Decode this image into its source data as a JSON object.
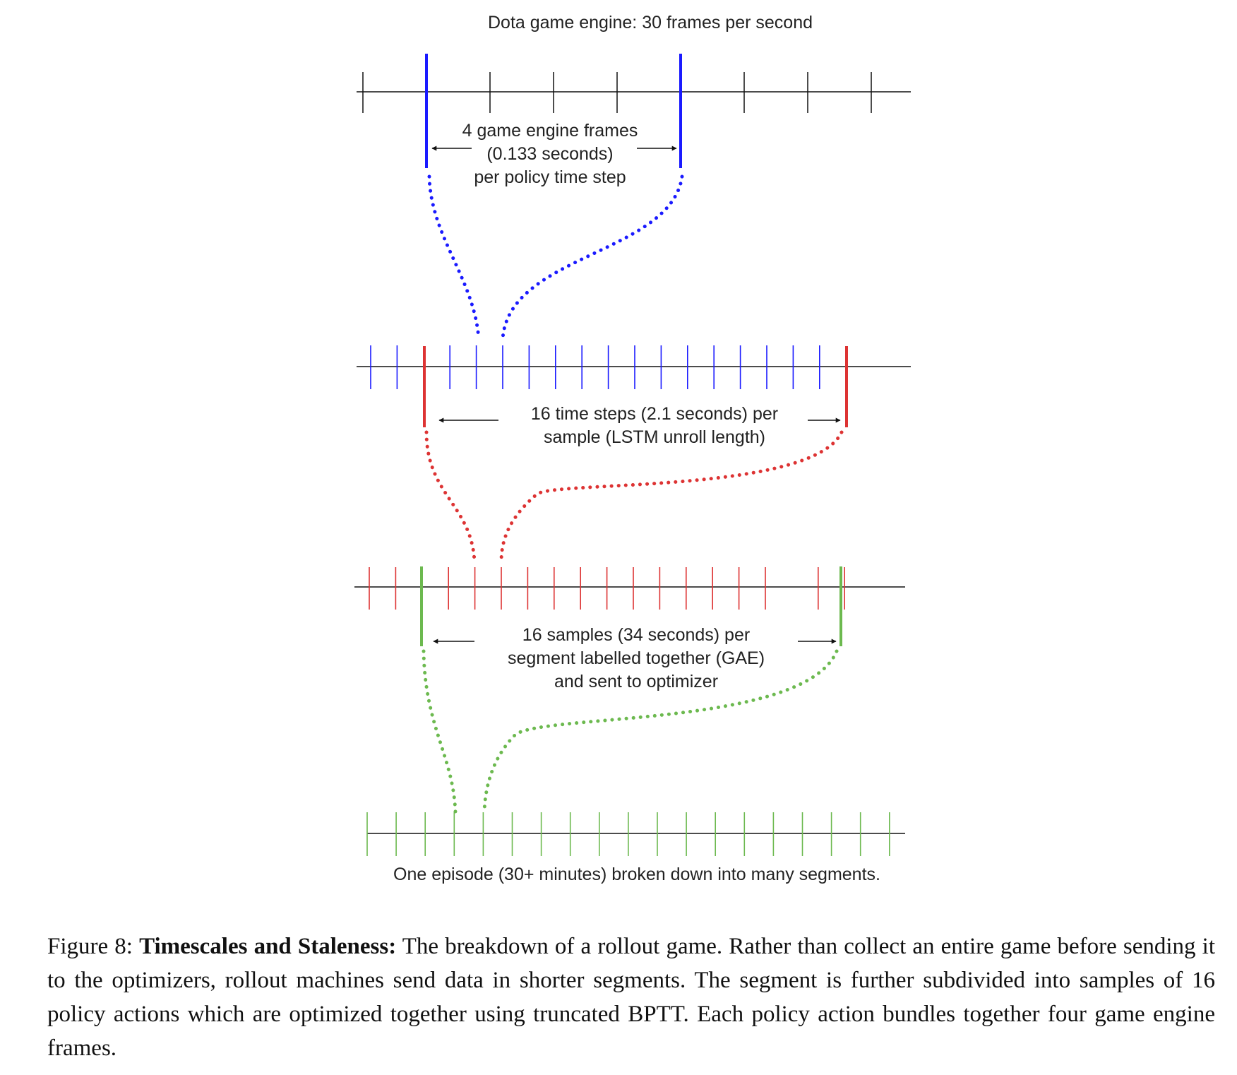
{
  "diagram": {
    "top_title": "Dota game engine: 30 frames per second",
    "annotations": {
      "frames": [
        "4 game engine frames",
        "(0.133 seconds)",
        "per policy time step"
      ],
      "steps": [
        "16 time steps (2.1 seconds) per",
        "sample (LSTM unroll length)"
      ],
      "samples": [
        "16 samples (34 seconds) per",
        "segment labelled together (GAE)",
        "and sent to optimizer"
      ],
      "episode": "One episode (30+ minutes) broken down into many segments."
    },
    "colors": {
      "axis": "#111111",
      "frame_tick": "#111111",
      "policy_step": "#1a1aff",
      "sample": "#dd3333",
      "segment": "#6cb94f"
    }
  },
  "caption": {
    "prefix": "Figure 8: ",
    "title": "Timescales and Staleness:",
    "body": " The breakdown of a rollout game. Rather than collect an entire game before sending it to the optimizers, rollout machines send data in shorter segments. The segment is further subdivided into samples of 16 policy actions which are optimized together using truncated BPTT. Each policy action bundles together four game engine frames."
  }
}
